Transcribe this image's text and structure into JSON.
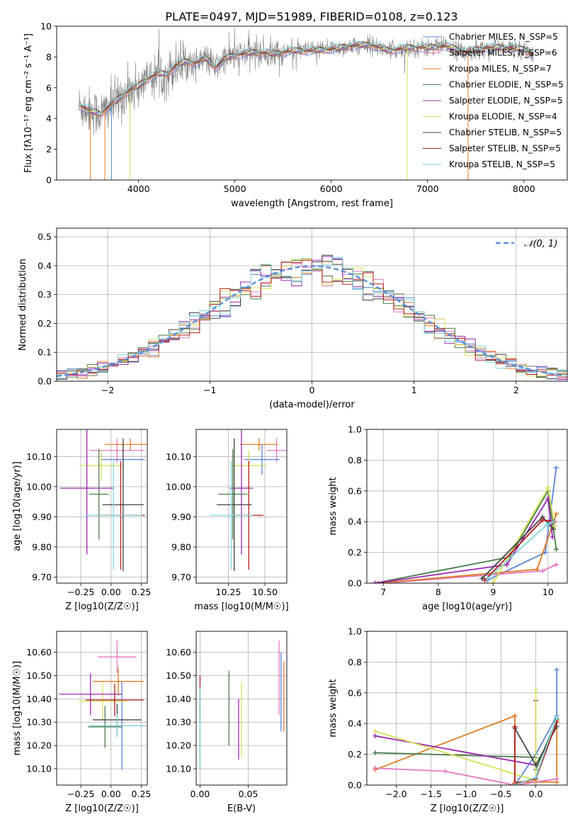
{
  "figure": {
    "title": "PLATE=0497, MJD=51989, FIBERID=0108, z=0.123"
  },
  "chart_data": [
    {
      "id": "spectrum",
      "type": "line",
      "xlabel": "wavelength [Angstrom, rest frame]",
      "ylabel": "Flux [fλ10⁻¹⁷ erg cm⁻² s⁻¹ A⁻¹]",
      "xlim": [
        3150,
        8450
      ],
      "ylim": [
        0,
        10
      ],
      "xticks": [
        4000,
        5000,
        6000,
        7000,
        8000
      ],
      "yticks": [
        0,
        2,
        4,
        6,
        8,
        10
      ],
      "grid": false,
      "legend_position": "top-right",
      "data_envelope": {
        "x": [
          3400,
          3500,
          3600,
          3700,
          3800,
          3900,
          4000,
          4100,
          4200,
          4300,
          4400,
          4500,
          4600,
          4700,
          4800,
          4900,
          5000,
          5200,
          5400,
          5600,
          5800,
          6000,
          6200,
          6400,
          6600,
          6800,
          7000,
          7200,
          7400,
          7600,
          7800,
          8000,
          8100
        ],
        "y": [
          4.8,
          4.5,
          4.3,
          4.8,
          5.3,
          5.8,
          6.1,
          6.6,
          6.9,
          6.9,
          7.5,
          7.7,
          7.6,
          7.9,
          7.3,
          7.9,
          8.1,
          8.3,
          8.2,
          8.4,
          8.4,
          8.5,
          8.7,
          8.8,
          8.4,
          8.6,
          8.6,
          8.7,
          8.3,
          8.6,
          8.6,
          8.5,
          8.1
        ]
      },
      "series": [
        {
          "name": "Chabrier MILES, N_SSP=5",
          "color": "#5b84d8"
        },
        {
          "name": "Salpeter MILES, N_SSP=6",
          "color": "#e377c2"
        },
        {
          "name": "Kroupa MILES, N_SSP=7",
          "color": "#e07b22"
        },
        {
          "name": "Chabrier ELODIE, N_SSP=5",
          "color": "#4a7d4a"
        },
        {
          "name": "Salpeter ELODIE, N_SSP=5",
          "color": "#9b27b0"
        },
        {
          "name": "Kroupa ELODIE, N_SSP=4",
          "color": "#d4e157"
        },
        {
          "name": "Chabrier STELIB, N_SSP=5",
          "color": "#444444"
        },
        {
          "name": "Salpeter STELIB, N_SSP=5",
          "color": "#b71c1c"
        },
        {
          "name": "Kroupa STELIB, N_SSP=5",
          "color": "#7fd6dc"
        }
      ]
    },
    {
      "id": "residuals",
      "type": "line",
      "xlabel": "(data-model)/error",
      "ylabel": "Normed distribution",
      "xlim": [
        -2.5,
        2.5
      ],
      "ylim": [
        0,
        0.53
      ],
      "xticks": [
        -2,
        -1,
        0,
        1,
        2
      ],
      "yticks": [
        0.0,
        0.1,
        0.2,
        0.3,
        0.4,
        0.5
      ],
      "grid": true,
      "legend_position": "top-right",
      "legend": "𝒩(0, 1)",
      "curve_color": "#5b8fd8",
      "histogram_bin_width": 0.1
    },
    {
      "id": "age-vs-Z",
      "type": "scatter",
      "xlabel": "Z [log10(Z/Z☉)]",
      "ylabel": "age [log10(age/yr)]",
      "xlim": [
        -0.45,
        0.3
      ],
      "ylim": [
        9.68,
        10.19
      ],
      "xticks": [
        -0.25,
        0.0,
        0.25
      ],
      "yticks": [
        9.7,
        9.8,
        9.9,
        10.0,
        10.1
      ],
      "grid": true,
      "points": [
        {
          "x": 0.16,
          "y": 10.14,
          "xerr": 0.21,
          "yerr": 0.02,
          "color": "#e07b22"
        },
        {
          "x": 0.05,
          "y": 10.12,
          "xerr": 0.23,
          "yerr": 0.04,
          "color": "#e377c2"
        },
        {
          "x": 0.1,
          "y": 10.09,
          "xerr": 0.18,
          "yerr": 0.05,
          "color": "#5b84d8"
        },
        {
          "x": -0.08,
          "y": 10.07,
          "xerr": 0.18,
          "yerr": 0.05,
          "color": "#d4e157"
        },
        {
          "x": -0.2,
          "y": 9.995,
          "xerr": 0.22,
          "yerr": 0.22,
          "color": "#9b27b0"
        },
        {
          "x": -0.1,
          "y": 9.975,
          "xerr": 0.08,
          "yerr": 0.15,
          "color": "#4a7d4a"
        },
        {
          "x": 0.1,
          "y": 9.94,
          "xerr": 0.17,
          "yerr": 0.22,
          "color": "#444444"
        },
        {
          "x": 0.08,
          "y": 9.905,
          "xerr": 0.2,
          "yerr": 0.18,
          "color": "#b71c1c"
        },
        {
          "x": 0.02,
          "y": 9.905,
          "xerr": 0.24,
          "yerr": 0.18,
          "color": "#7fd6dc"
        }
      ]
    },
    {
      "id": "age-vs-mass",
      "type": "scatter",
      "xlabel": "mass [log10(M/M☉)]",
      "ylabel": "",
      "xlim": [
        10.03,
        10.65
      ],
      "ylim": [
        9.68,
        10.19
      ],
      "xticks": [
        10.25,
        10.5
      ],
      "yticks": [
        9.7,
        9.8,
        9.9,
        10.0,
        10.1
      ],
      "grid": true,
      "points": [
        {
          "x": 10.46,
          "y": 10.14,
          "xerr": 0.13,
          "yerr": 0.02,
          "color": "#e07b22"
        },
        {
          "x": 10.58,
          "y": 10.12,
          "xerr": 0.07,
          "yerr": 0.04,
          "color": "#e377c2"
        },
        {
          "x": 10.48,
          "y": 10.09,
          "xerr": 0.12,
          "yerr": 0.05,
          "color": "#5b84d8"
        },
        {
          "x": 10.39,
          "y": 10.07,
          "xerr": 0.12,
          "yerr": 0.05,
          "color": "#d4e157"
        },
        {
          "x": 10.34,
          "y": 9.995,
          "xerr": 0.08,
          "yerr": 0.22,
          "color": "#9b27b0"
        },
        {
          "x": 10.28,
          "y": 9.975,
          "xerr": 0.1,
          "yerr": 0.15,
          "color": "#4a7d4a"
        },
        {
          "x": 10.29,
          "y": 9.94,
          "xerr": 0.12,
          "yerr": 0.22,
          "color": "#444444"
        },
        {
          "x": 10.39,
          "y": 9.905,
          "xerr": 0.1,
          "yerr": 0.18,
          "color": "#b71c1c"
        },
        {
          "x": 10.27,
          "y": 9.905,
          "xerr": 0.15,
          "yerr": 0.18,
          "color": "#7fd6dc"
        }
      ]
    },
    {
      "id": "mass-weight-vs-age",
      "type": "line",
      "xlabel": "age [log10(age/yr)]",
      "ylabel": "mass weight",
      "xlim": [
        6.7,
        10.35
      ],
      "ylim": [
        0,
        1
      ],
      "xticks": [
        7,
        8,
        9,
        10
      ],
      "yticks": [
        0.0,
        0.2,
        0.4,
        0.6,
        0.8,
        1.0
      ],
      "grid": true,
      "series": [
        {
          "color": "#5b84d8",
          "points": [
            [
              8.9,
              0.02
            ],
            [
              9.95,
              0.2
            ],
            [
              10.15,
              0.75
            ]
          ]
        },
        {
          "color": "#e377c2",
          "points": [
            [
              7.0,
              0.0
            ],
            [
              9.9,
              0.08
            ],
            [
              10.15,
              0.12
            ]
          ]
        },
        {
          "color": "#e07b22",
          "points": [
            [
              6.9,
              0.0
            ],
            [
              9.8,
              0.09
            ],
            [
              10.15,
              0.45
            ]
          ]
        },
        {
          "color": "#4a7d4a",
          "points": [
            [
              6.85,
              0.0
            ],
            [
              9.3,
              0.17
            ],
            [
              10.0,
              0.6
            ],
            [
              10.15,
              0.22
            ]
          ]
        },
        {
          "color": "#9b27b0",
          "points": [
            [
              6.85,
              0.0
            ],
            [
              9.25,
              0.12
            ],
            [
              10.0,
              0.55
            ],
            [
              10.08,
              0.3
            ]
          ]
        },
        {
          "color": "#d4e157",
          "points": [
            [
              9.0,
              0.0
            ],
            [
              10.0,
              0.62
            ],
            [
              10.12,
              0.37
            ]
          ]
        },
        {
          "color": "#444444",
          "points": [
            [
              8.8,
              0.03
            ],
            [
              9.9,
              0.43
            ],
            [
              10.1,
              0.35
            ]
          ]
        },
        {
          "color": "#b71c1c",
          "points": [
            [
              8.85,
              0.02
            ],
            [
              9.9,
              0.41
            ],
            [
              10.12,
              0.4
            ]
          ]
        },
        {
          "color": "#7fd6dc",
          "points": [
            [
              8.9,
              0.03
            ],
            [
              9.98,
              0.38
            ],
            [
              10.1,
              0.4
            ]
          ]
        }
      ]
    },
    {
      "id": "mass-vs-Z",
      "type": "scatter",
      "xlabel": "Z [log10(Z/Z☉)]",
      "ylabel": "mass [log10(M/M☉)]",
      "xlim": [
        -0.45,
        0.3
      ],
      "ylim": [
        10.03,
        10.69
      ],
      "xticks": [
        -0.25,
        0.0,
        0.25
      ],
      "yticks": [
        10.1,
        10.2,
        10.3,
        10.4,
        10.5,
        10.6
      ],
      "grid": true,
      "points": [
        {
          "x": 0.06,
          "y": 10.475,
          "xerr": 0.21,
          "yerr": 0.06,
          "color": "#e07b22"
        },
        {
          "x": 0.05,
          "y": 10.58,
          "xerr": 0.16,
          "yerr": 0.07,
          "color": "#e377c2"
        },
        {
          "x": 0.09,
          "y": 10.285,
          "xerr": 0.2,
          "yerr": 0.19,
          "color": "#5b84d8"
        },
        {
          "x": -0.07,
          "y": 10.39,
          "xerr": 0.2,
          "yerr": 0.08,
          "color": "#d4e157"
        },
        {
          "x": -0.17,
          "y": 10.42,
          "xerr": 0.26,
          "yerr": 0.09,
          "color": "#9b27b0"
        },
        {
          "x": -0.05,
          "y": 10.28,
          "xerr": 0.14,
          "yerr": 0.09,
          "color": "#4a7d4a"
        },
        {
          "x": 0.05,
          "y": 10.31,
          "xerr": 0.2,
          "yerr": 0.07,
          "color": "#444444"
        },
        {
          "x": 0.03,
          "y": 10.395,
          "xerr": 0.24,
          "yerr": 0.07,
          "color": "#b71c1c"
        },
        {
          "x": 0.05,
          "y": 10.285,
          "xerr": 0.23,
          "yerr": 0.05,
          "color": "#7fd6dc"
        }
      ]
    },
    {
      "id": "mass-vs-EBV",
      "type": "scatter",
      "xlabel": "E(B-V)",
      "ylabel": "",
      "xlim": [
        -0.004,
        0.09
      ],
      "ylim": [
        10.03,
        10.69
      ],
      "xticks": [
        0.0,
        0.05
      ],
      "yticks": [
        10.1,
        10.2,
        10.3,
        10.4,
        10.5,
        10.6
      ],
      "grid": true,
      "points": [
        {
          "x": 0.0,
          "y": 10.4,
          "yerr": 0.1,
          "color": "#b71c1c"
        },
        {
          "x": 0.0,
          "y": 10.28,
          "yerr": 0.17,
          "color": "#5b84d8"
        },
        {
          "x": 0.0,
          "y": 10.27,
          "yerr": 0.18,
          "color": "#7fd6dc"
        },
        {
          "x": 0.03,
          "y": 10.36,
          "yerr": 0.16,
          "color": "#4a7d4a"
        },
        {
          "x": 0.04,
          "y": 10.27,
          "yerr": 0.13,
          "color": "#9b27b0"
        },
        {
          "x": 0.043,
          "y": 10.31,
          "yerr": 0.16,
          "color": "#d4e157"
        },
        {
          "x": 0.082,
          "y": 10.49,
          "yerr": 0.16,
          "color": "#e377c2"
        },
        {
          "x": 0.084,
          "y": 10.43,
          "yerr": 0.17,
          "color": "#5b84d8"
        },
        {
          "x": 0.087,
          "y": 10.41,
          "yerr": 0.15,
          "color": "#e07b22"
        }
      ]
    },
    {
      "id": "mass-weight-vs-Z",
      "type": "line",
      "xlabel": "Z [log10(Z/Z☉)]",
      "ylabel": "mass weight",
      "xlim": [
        -2.42,
        0.45
      ],
      "ylim": [
        0,
        1
      ],
      "xticks": [
        -2.0,
        -1.5,
        -1.0,
        -0.5,
        0.0
      ],
      "yticks": [
        0.0,
        0.2,
        0.4,
        0.6,
        0.8,
        1.0
      ],
      "grid": true,
      "series": [
        {
          "color": "#e07b22",
          "points": [
            [
              -2.3,
              0.1
            ],
            [
              -0.3,
              0.45
            ],
            [
              -0.3,
              0.02
            ],
            [
              0.0,
              0.02
            ],
            [
              0.3,
              0.02
            ],
            [
              0.3,
              0.42
            ]
          ]
        },
        {
          "color": "#e377c2",
          "points": [
            [
              -2.3,
              0.11
            ],
            [
              -1.3,
              0.09
            ],
            [
              -0.3,
              0.0
            ],
            [
              0.3,
              0.04
            ]
          ]
        },
        {
          "color": "#5b84d8",
          "points": [
            [
              -0.3,
              0.0
            ],
            [
              0.0,
              0.2
            ],
            [
              0.3,
              0.45
            ],
            [
              0.3,
              0.75
            ]
          ]
        },
        {
          "color": "#4a7d4a",
          "points": [
            [
              -2.3,
              0.21
            ],
            [
              0.0,
              0.18
            ],
            [
              0.0,
              0.1
            ],
            [
              0.3,
              0.43
            ]
          ]
        },
        {
          "color": "#9b27b0",
          "points": [
            [
              -2.3,
              0.32
            ],
            [
              0.0,
              0.13
            ],
            [
              0.0,
              0.55
            ]
          ]
        },
        {
          "color": "#d4e157",
          "points": [
            [
              -2.3,
              0.35
            ],
            [
              0.0,
              0.03
            ],
            [
              0.0,
              0.62
            ]
          ]
        },
        {
          "color": "#444444",
          "points": [
            [
              -0.3,
              0.37
            ],
            [
              0.0,
              0.13
            ],
            [
              0.3,
              0.38
            ]
          ]
        },
        {
          "color": "#b71c1c",
          "points": [
            [
              -0.3,
              0.38
            ],
            [
              -0.3,
              0.01
            ],
            [
              0.0,
              0.04
            ],
            [
              0.3,
              0.41
            ]
          ]
        },
        {
          "color": "#7fd6dc",
          "points": [
            [
              -0.3,
              0.0
            ],
            [
              0.0,
              0.05
            ],
            [
              0.3,
              0.44
            ]
          ]
        }
      ]
    }
  ]
}
